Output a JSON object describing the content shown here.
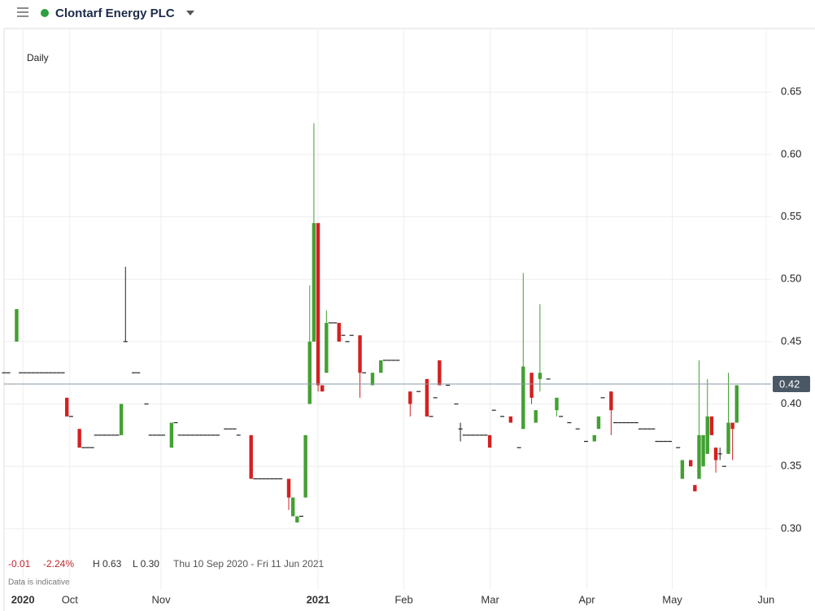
{
  "header": {
    "title": "Clontarf Energy PLC"
  },
  "chart_data": {
    "type": "candlestick",
    "interval": "Daily",
    "change": "-0.01",
    "change_pct": "-2.24%",
    "high": "H 0.63",
    "low": "L 0.30",
    "range": "Thu 10 Sep 2020 - Fri 11 Jun 2021",
    "note": "Data is indicative",
    "up_color": "#43a033",
    "down_color": "#d42020",
    "flat_color": "#222222",
    "grid": true,
    "last_price": {
      "value": 0.416,
      "label": "0.42"
    },
    "xlim": [
      0,
      183.2
    ],
    "ylim": [
      0.251,
      0.701
    ],
    "yticks": [
      {
        "value": 0.3,
        "label": "0.30"
      },
      0.35,
      {
        "value": 0.4,
        "label": "0.40"
      },
      0.45,
      {
        "value": 0.5,
        "label": "0.50"
      },
      0.55,
      {
        "value": 0.6,
        "label": "0.60"
      },
      0.65
    ],
    "xticks": [
      {
        "value": 4.5,
        "label": "2020"
      },
      {
        "value": 15.7,
        "label": "Oct"
      },
      {
        "value": 37.5,
        "label": "Nov"
      },
      {
        "value": 75,
        "label": "2021"
      },
      {
        "value": 95.5,
        "label": "Feb"
      },
      {
        "value": 116.1,
        "label": "Mar"
      },
      {
        "value": 139.2,
        "label": "Apr"
      },
      {
        "value": 159.6,
        "label": "May"
      },
      {
        "value": 182,
        "label": "Jun"
      }
    ],
    "candles": [
      [
        0,
        0.425,
        0.425,
        0.425,
        0.425
      ],
      [
        1,
        0.425,
        0.425,
        0.425,
        0.425
      ],
      [
        3,
        0.45,
        0.476,
        0.45,
        0.476
      ],
      [
        4,
        0.425,
        0.425,
        0.425,
        0.425
      ],
      [
        5,
        0.425,
        0.425,
        0.425,
        0.425
      ],
      [
        6,
        0.425,
        0.425,
        0.425,
        0.425
      ],
      [
        7,
        0.425,
        0.425,
        0.425,
        0.425
      ],
      [
        8,
        0.425,
        0.425,
        0.425,
        0.425
      ],
      [
        9,
        0.425,
        0.425,
        0.425,
        0.425
      ],
      [
        10,
        0.425,
        0.425,
        0.425,
        0.425
      ],
      [
        11,
        0.425,
        0.425,
        0.425,
        0.425
      ],
      [
        12,
        0.425,
        0.425,
        0.425,
        0.425
      ],
      [
        13,
        0.425,
        0.425,
        0.425,
        0.425
      ],
      [
        14,
        0.425,
        0.425,
        0.425,
        0.425
      ],
      [
        15,
        0.405,
        0.405,
        0.39,
        0.39
      ],
      [
        16,
        0.39,
        0.39,
        0.39,
        0.39
      ],
      [
        18,
        0.38,
        0.38,
        0.365,
        0.365
      ],
      [
        19,
        0.365,
        0.365,
        0.365,
        0.365
      ],
      [
        20,
        0.365,
        0.365,
        0.365,
        0.365
      ],
      [
        21,
        0.365,
        0.365,
        0.365,
        0.365
      ],
      [
        22,
        0.375,
        0.375,
        0.375,
        0.375
      ],
      [
        23,
        0.375,
        0.375,
        0.375,
        0.375
      ],
      [
        24,
        0.375,
        0.375,
        0.375,
        0.375
      ],
      [
        25,
        0.375,
        0.375,
        0.375,
        0.375
      ],
      [
        26,
        0.375,
        0.375,
        0.375,
        0.375
      ],
      [
        27,
        0.375,
        0.375,
        0.375,
        0.375
      ],
      [
        28,
        0.375,
        0.4,
        0.375,
        0.4
      ],
      [
        29,
        0.45,
        0.51,
        0.45,
        0.45
      ],
      [
        31,
        0.425,
        0.425,
        0.425,
        0.425
      ],
      [
        32,
        0.425,
        0.425,
        0.425,
        0.425
      ],
      [
        34,
        0.4,
        0.4,
        0.4,
        0.4
      ],
      [
        35,
        0.375,
        0.375,
        0.375,
        0.375
      ],
      [
        36,
        0.375,
        0.375,
        0.375,
        0.375
      ],
      [
        37,
        0.375,
        0.375,
        0.375,
        0.375
      ],
      [
        38,
        0.375,
        0.375,
        0.375,
        0.375
      ],
      [
        40,
        0.365,
        0.385,
        0.365,
        0.385
      ],
      [
        41,
        0.385,
        0.385,
        0.385,
        0.385
      ],
      [
        42,
        0.375,
        0.375,
        0.375,
        0.375
      ],
      [
        43,
        0.375,
        0.375,
        0.375,
        0.375
      ],
      [
        44,
        0.375,
        0.375,
        0.375,
        0.375
      ],
      [
        45,
        0.375,
        0.375,
        0.375,
        0.375
      ],
      [
        46,
        0.375,
        0.375,
        0.375,
        0.375
      ],
      [
        47,
        0.375,
        0.375,
        0.375,
        0.375
      ],
      [
        48,
        0.375,
        0.375,
        0.375,
        0.375
      ],
      [
        49,
        0.375,
        0.375,
        0.375,
        0.375
      ],
      [
        50,
        0.375,
        0.375,
        0.375,
        0.375
      ],
      [
        51,
        0.375,
        0.375,
        0.375,
        0.375
      ],
      [
        53,
        0.38,
        0.38,
        0.38,
        0.38
      ],
      [
        54,
        0.38,
        0.38,
        0.38,
        0.38
      ],
      [
        55,
        0.38,
        0.38,
        0.38,
        0.38
      ],
      [
        56,
        0.375,
        0.375,
        0.375,
        0.375
      ],
      [
        59,
        0.375,
        0.375,
        0.34,
        0.34
      ],
      [
        60,
        0.34,
        0.34,
        0.34,
        0.34
      ],
      [
        61,
        0.34,
        0.34,
        0.34,
        0.34
      ],
      [
        62,
        0.34,
        0.34,
        0.34,
        0.34
      ],
      [
        63,
        0.34,
        0.34,
        0.34,
        0.34
      ],
      [
        64,
        0.34,
        0.34,
        0.34,
        0.34
      ],
      [
        65,
        0.34,
        0.34,
        0.34,
        0.34
      ],
      [
        66,
        0.34,
        0.34,
        0.34,
        0.34
      ],
      [
        68,
        0.34,
        0.34,
        0.315,
        0.325
      ],
      [
        69,
        0.31,
        0.325,
        0.31,
        0.325
      ],
      [
        70,
        0.305,
        0.31,
        0.305,
        0.31
      ],
      [
        71,
        0.31,
        0.31,
        0.31,
        0.31
      ],
      [
        72,
        0.325,
        0.375,
        0.325,
        0.375
      ],
      [
        73,
        0.4,
        0.495,
        0.4,
        0.45
      ],
      [
        74,
        0.45,
        0.625,
        0.45,
        0.545
      ],
      [
        75,
        0.545,
        0.545,
        0.41,
        0.415
      ],
      [
        76,
        0.415,
        0.415,
        0.41,
        0.41
      ],
      [
        77,
        0.425,
        0.475,
        0.425,
        0.465
      ],
      [
        78,
        0.465,
        0.465,
        0.465,
        0.465
      ],
      [
        79,
        0.465,
        0.465,
        0.465,
        0.465
      ],
      [
        80,
        0.465,
        0.465,
        0.45,
        0.45
      ],
      [
        81,
        0.455,
        0.455,
        0.455,
        0.455
      ],
      [
        82,
        0.45,
        0.45,
        0.45,
        0.45
      ],
      [
        83,
        0.455,
        0.455,
        0.455,
        0.455
      ],
      [
        85,
        0.455,
        0.455,
        0.405,
        0.425
      ],
      [
        86,
        0.425,
        0.425,
        0.425,
        0.425
      ],
      [
        88,
        0.415,
        0.425,
        0.415,
        0.425
      ],
      [
        90,
        0.425,
        0.435,
        0.425,
        0.435
      ],
      [
        91,
        0.435,
        0.435,
        0.435,
        0.435
      ],
      [
        92,
        0.435,
        0.435,
        0.435,
        0.435
      ],
      [
        93,
        0.435,
        0.435,
        0.435,
        0.435
      ],
      [
        94,
        0.435,
        0.435,
        0.435,
        0.435
      ],
      [
        97,
        0.41,
        0.41,
        0.39,
        0.4
      ],
      [
        99,
        0.41,
        0.41,
        0.41,
        0.41
      ],
      [
        101,
        0.42,
        0.42,
        0.39,
        0.39
      ],
      [
        102,
        0.39,
        0.39,
        0.39,
        0.39
      ],
      [
        103,
        0.405,
        0.405,
        0.405,
        0.405
      ],
      [
        104,
        0.435,
        0.435,
        0.415,
        0.415
      ],
      [
        106,
        0.415,
        0.415,
        0.415,
        0.415
      ],
      [
        108,
        0.4,
        0.4,
        0.4,
        0.4
      ],
      [
        109,
        0.38,
        0.385,
        0.37,
        0.38
      ],
      [
        110,
        0.375,
        0.375,
        0.375,
        0.375
      ],
      [
        111,
        0.375,
        0.375,
        0.375,
        0.375
      ],
      [
        112,
        0.375,
        0.375,
        0.375,
        0.375
      ],
      [
        113,
        0.375,
        0.375,
        0.375,
        0.375
      ],
      [
        114,
        0.375,
        0.375,
        0.375,
        0.375
      ],
      [
        115,
        0.375,
        0.375,
        0.375,
        0.375
      ],
      [
        116,
        0.375,
        0.375,
        0.365,
        0.365
      ],
      [
        117,
        0.395,
        0.395,
        0.395,
        0.395
      ],
      [
        119,
        0.39,
        0.39,
        0.39,
        0.39
      ],
      [
        121,
        0.39,
        0.39,
        0.385,
        0.385
      ],
      [
        123,
        0.365,
        0.365,
        0.365,
        0.365
      ],
      [
        124,
        0.38,
        0.505,
        0.38,
        0.43
      ],
      [
        126,
        0.425,
        0.425,
        0.4,
        0.405
      ],
      [
        127,
        0.385,
        0.395,
        0.385,
        0.395
      ],
      [
        128,
        0.42,
        0.48,
        0.41,
        0.425
      ],
      [
        130,
        0.42,
        0.42,
        0.42,
        0.42
      ],
      [
        132,
        0.395,
        0.405,
        0.39,
        0.405
      ],
      [
        133,
        0.39,
        0.39,
        0.39,
        0.39
      ],
      [
        135,
        0.385,
        0.385,
        0.385,
        0.385
      ],
      [
        137,
        0.38,
        0.38,
        0.38,
        0.38
      ],
      [
        139,
        0.37,
        0.37,
        0.37,
        0.37
      ],
      [
        141,
        0.37,
        0.375,
        0.37,
        0.375
      ],
      [
        142,
        0.38,
        0.39,
        0.38,
        0.39
      ],
      [
        143,
        0.405,
        0.405,
        0.405,
        0.405
      ],
      [
        145,
        0.41,
        0.41,
        0.375,
        0.395
      ],
      [
        146,
        0.385,
        0.385,
        0.385,
        0.385
      ],
      [
        147,
        0.385,
        0.385,
        0.385,
        0.385
      ],
      [
        148,
        0.385,
        0.385,
        0.385,
        0.385
      ],
      [
        149,
        0.385,
        0.385,
        0.385,
        0.385
      ],
      [
        150,
        0.385,
        0.385,
        0.385,
        0.385
      ],
      [
        151,
        0.385,
        0.385,
        0.385,
        0.385
      ],
      [
        152,
        0.38,
        0.38,
        0.38,
        0.38
      ],
      [
        153,
        0.38,
        0.38,
        0.38,
        0.38
      ],
      [
        154,
        0.38,
        0.38,
        0.38,
        0.38
      ],
      [
        155,
        0.38,
        0.38,
        0.38,
        0.38
      ],
      [
        156,
        0.37,
        0.37,
        0.37,
        0.37
      ],
      [
        157,
        0.37,
        0.37,
        0.37,
        0.37
      ],
      [
        158,
        0.37,
        0.37,
        0.37,
        0.37
      ],
      [
        159,
        0.37,
        0.37,
        0.37,
        0.37
      ],
      [
        161,
        0.365,
        0.365,
        0.365,
        0.365
      ],
      [
        162,
        0.34,
        0.355,
        0.34,
        0.355
      ],
      [
        164,
        0.355,
        0.355,
        0.35,
        0.35
      ],
      [
        165,
        0.335,
        0.335,
        0.33,
        0.33
      ],
      [
        166,
        0.34,
        0.435,
        0.34,
        0.375
      ],
      [
        167,
        0.35,
        0.375,
        0.35,
        0.375
      ],
      [
        168,
        0.36,
        0.42,
        0.36,
        0.39
      ],
      [
        169,
        0.39,
        0.39,
        0.375,
        0.375
      ],
      [
        170,
        0.365,
        0.365,
        0.345,
        0.355
      ],
      [
        171,
        0.36,
        0.365,
        0.355,
        0.36
      ],
      [
        172,
        0.35,
        0.35,
        0.35,
        0.35
      ],
      [
        173,
        0.36,
        0.425,
        0.36,
        0.385
      ],
      [
        174,
        0.385,
        0.385,
        0.355,
        0.38
      ],
      [
        175,
        0.385,
        0.415,
        0.385,
        0.415
      ]
    ]
  }
}
